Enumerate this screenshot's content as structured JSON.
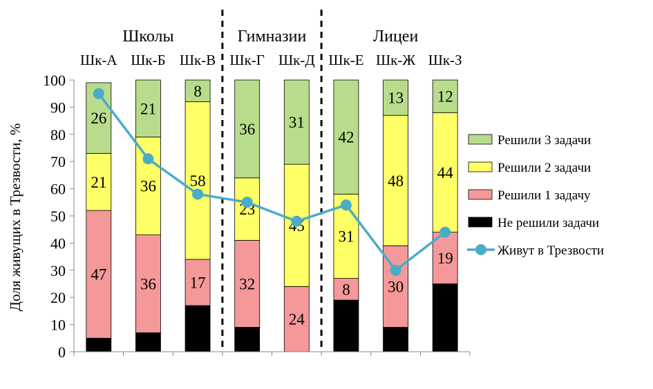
{
  "chart_data": {
    "type": "bar",
    "stacked": true,
    "ylabel": "Доля живущих в Трезвости, %",
    "ylim": [
      0,
      100
    ],
    "yticks": [
      0,
      10,
      20,
      30,
      40,
      50,
      60,
      70,
      80,
      90,
      100
    ],
    "categories": [
      "Шк-А",
      "Шк-Б",
      "Шк-В",
      "Шк-Г",
      "Шк-Д",
      "Шк-Е",
      "Шк-Ж",
      "Шк-З"
    ],
    "groups": [
      {
        "label": "Школы",
        "categories": [
          "Шк-А",
          "Шк-Б",
          "Шк-В"
        ]
      },
      {
        "label": "Гимназии",
        "categories": [
          "Шк-Г",
          "Шк-Д"
        ]
      },
      {
        "label": "Лицеи",
        "categories": [
          "Шк-Е",
          "Шк-Ж",
          "Шк-З"
        ]
      }
    ],
    "series": [
      {
        "name": "Не решили задачи",
        "color": "#000000",
        "values": [
          5,
          7,
          17,
          9,
          0,
          19,
          9,
          25
        ],
        "labels": [
          false,
          false,
          false,
          false,
          false,
          false,
          false,
          false
        ]
      },
      {
        "name": "Решили 1 задачу",
        "color": "#f4989a",
        "values": [
          47,
          36,
          17,
          32,
          24,
          8,
          30,
          19
        ],
        "labels": [
          true,
          true,
          true,
          true,
          true,
          true,
          true,
          true
        ]
      },
      {
        "name": "Решили 2 задачи",
        "color": "#ffff66",
        "values": [
          21,
          36,
          58,
          23,
          45,
          31,
          48,
          44
        ],
        "labels": [
          true,
          true,
          true,
          true,
          true,
          true,
          true,
          true
        ]
      },
      {
        "name": "Решили 3 задачи",
        "color": "#b8dc8c",
        "values": [
          26,
          21,
          8,
          36,
          31,
          42,
          13,
          12
        ],
        "labels": [
          true,
          true,
          true,
          true,
          true,
          true,
          true,
          true
        ]
      }
    ],
    "line": {
      "name": "Живут в Трезвости",
      "color": "#4aacc6",
      "values": [
        95,
        71,
        58,
        55,
        48,
        54,
        30,
        44
      ]
    },
    "legend_order": [
      "Решили 3 задачи",
      "Решили 2 задачи",
      "Решили 1 задачу",
      "Не решили задачи",
      "Живут в Трезвости"
    ],
    "legend_position": "right",
    "grid": false
  }
}
